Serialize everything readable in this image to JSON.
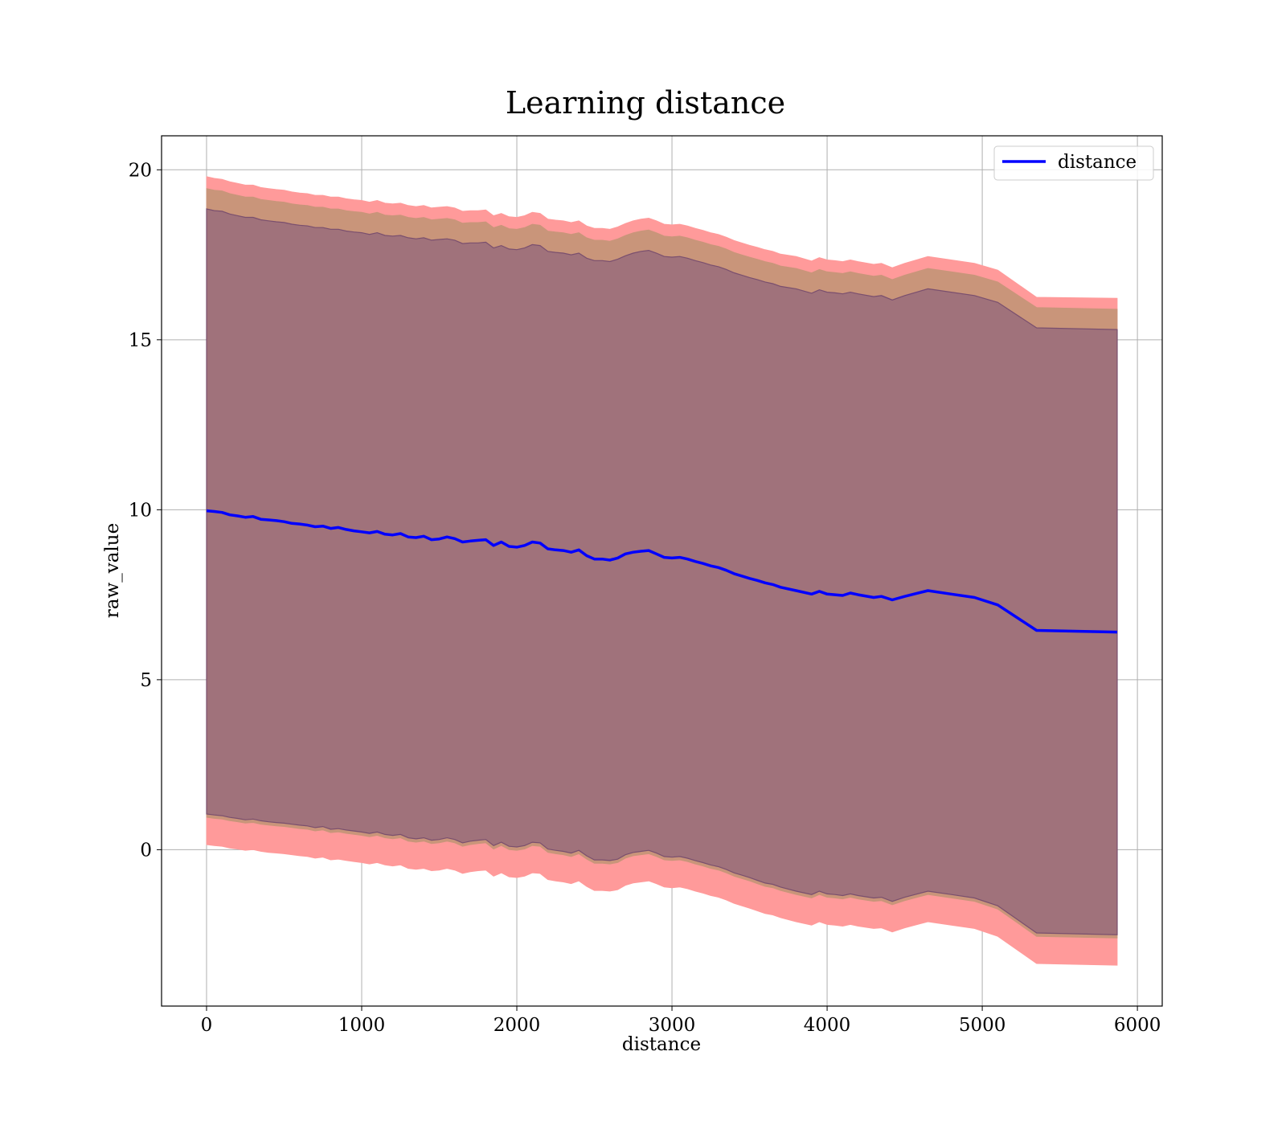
{
  "chart_data": {
    "type": "line",
    "title": "Learning distance",
    "xlabel": "distance",
    "ylabel": "raw_value",
    "xlim": [
      -290,
      6160
    ],
    "ylim": [
      -4.6,
      21.0
    ],
    "xticks": [
      0,
      1000,
      2000,
      3000,
      4000,
      5000,
      6000
    ],
    "yticks": [
      0,
      5,
      10,
      15,
      20
    ],
    "grid": true,
    "legend_position": "top-right",
    "colors": {
      "line": "#0000ff",
      "band_outer": "#ff9a9a",
      "band_middle": "#c9957a",
      "band_inner": "#a0727b",
      "band_inner_edge": "#7a4f6e"
    },
    "series": [
      {
        "name": "distance",
        "x": [
          0,
          50,
          100,
          150,
          200,
          250,
          300,
          350,
          400,
          450,
          500,
          550,
          600,
          650,
          700,
          750,
          800,
          850,
          900,
          950,
          1000,
          1050,
          1100,
          1150,
          1200,
          1250,
          1300,
          1350,
          1400,
          1450,
          1500,
          1550,
          1600,
          1650,
          1700,
          1750,
          1800,
          1850,
          1900,
          1950,
          2000,
          2050,
          2100,
          2150,
          2200,
          2250,
          2300,
          2350,
          2400,
          2450,
          2500,
          2550,
          2600,
          2650,
          2700,
          2750,
          2800,
          2850,
          2900,
          2950,
          3000,
          3050,
          3100,
          3150,
          3200,
          3250,
          3300,
          3350,
          3400,
          3450,
          3500,
          3550,
          3600,
          3650,
          3700,
          3800,
          3900,
          3950,
          4000,
          4050,
          4100,
          4150,
          4200,
          4300,
          4350,
          4420,
          4500,
          4650,
          4800,
          4950,
          5100,
          5350,
          5870
        ],
        "y": [
          9.97,
          9.95,
          9.92,
          9.85,
          9.82,
          9.78,
          9.8,
          9.72,
          9.7,
          9.68,
          9.65,
          9.6,
          9.58,
          9.55,
          9.5,
          9.52,
          9.45,
          9.48,
          9.42,
          9.38,
          9.35,
          9.32,
          9.36,
          9.28,
          9.26,
          9.3,
          9.2,
          9.18,
          9.22,
          9.12,
          9.14,
          9.2,
          9.15,
          9.05,
          9.08,
          9.1,
          9.12,
          8.95,
          9.05,
          8.92,
          8.9,
          8.95,
          9.05,
          9.02,
          8.85,
          8.82,
          8.8,
          8.75,
          8.82,
          8.65,
          8.55,
          8.55,
          8.52,
          8.58,
          8.7,
          8.75,
          8.78,
          8.8,
          8.7,
          8.6,
          8.58,
          8.6,
          8.55,
          8.48,
          8.42,
          8.35,
          8.3,
          8.22,
          8.12,
          8.05,
          7.98,
          7.92,
          7.85,
          7.8,
          7.72,
          7.62,
          7.52,
          7.6,
          7.52,
          7.5,
          7.48,
          7.55,
          7.5,
          7.42,
          7.45,
          7.35,
          7.45,
          7.62,
          7.52,
          7.42,
          7.2,
          6.45,
          6.4
        ]
      }
    ],
    "bands": [
      {
        "level": "outer",
        "upper": [
          19.8,
          19.75,
          19.72,
          19.65,
          19.6,
          19.55,
          19.55,
          19.48,
          19.45,
          19.42,
          19.4,
          19.35,
          19.32,
          19.3,
          19.25,
          19.25,
          19.2,
          19.2,
          19.15,
          19.12,
          19.1,
          19.05,
          19.1,
          19.02,
          19.0,
          19.02,
          18.95,
          18.92,
          18.95,
          18.88,
          18.9,
          18.92,
          18.88,
          18.78,
          18.8,
          18.8,
          18.82,
          18.65,
          18.72,
          18.62,
          18.6,
          18.65,
          18.75,
          18.72,
          18.55,
          18.52,
          18.5,
          18.45,
          18.5,
          18.35,
          18.28,
          18.28,
          18.25,
          18.32,
          18.42,
          18.5,
          18.55,
          18.58,
          18.5,
          18.4,
          18.38,
          18.4,
          18.35,
          18.28,
          18.22,
          18.15,
          18.1,
          18.02,
          17.92,
          17.85,
          17.78,
          17.72,
          17.65,
          17.6,
          17.52,
          17.45,
          17.32,
          17.42,
          17.35,
          17.33,
          17.3,
          17.35,
          17.3,
          17.22,
          17.25,
          17.12,
          17.25,
          17.45,
          17.35,
          17.25,
          17.05,
          16.25,
          16.22
        ],
        "lower": [
          0.15,
          0.12,
          0.1,
          0.05,
          0.02,
          -0.02,
          0.0,
          -0.05,
          -0.08,
          -0.1,
          -0.12,
          -0.15,
          -0.18,
          -0.2,
          -0.25,
          -0.22,
          -0.3,
          -0.28,
          -0.32,
          -0.35,
          -0.38,
          -0.42,
          -0.38,
          -0.45,
          -0.48,
          -0.45,
          -0.55,
          -0.58,
          -0.55,
          -0.62,
          -0.6,
          -0.55,
          -0.6,
          -0.7,
          -0.65,
          -0.62,
          -0.6,
          -0.78,
          -0.68,
          -0.8,
          -0.82,
          -0.78,
          -0.68,
          -0.7,
          -0.88,
          -0.92,
          -0.95,
          -1.0,
          -0.92,
          -1.08,
          -1.2,
          -1.2,
          -1.22,
          -1.18,
          -1.05,
          -0.98,
          -0.95,
          -0.92,
          -1.0,
          -1.1,
          -1.12,
          -1.1,
          -1.15,
          -1.22,
          -1.28,
          -1.35,
          -1.4,
          -1.48,
          -1.58,
          -1.65,
          -1.72,
          -1.8,
          -1.88,
          -1.92,
          -2.0,
          -2.12,
          -2.22,
          -2.12,
          -2.2,
          -2.22,
          -2.25,
          -2.2,
          -2.25,
          -2.32,
          -2.3,
          -2.42,
          -2.3,
          -2.12,
          -2.22,
          -2.32,
          -2.55,
          -3.35,
          -3.4
        ]
      },
      {
        "level": "middle",
        "upper": [
          19.45,
          19.4,
          19.38,
          19.3,
          19.25,
          19.2,
          19.2,
          19.13,
          19.1,
          19.07,
          19.05,
          19.0,
          18.97,
          18.95,
          18.9,
          18.9,
          18.85,
          18.85,
          18.8,
          18.77,
          18.75,
          18.7,
          18.75,
          18.67,
          18.65,
          18.67,
          18.6,
          18.57,
          18.6,
          18.53,
          18.55,
          18.57,
          18.53,
          18.43,
          18.45,
          18.45,
          18.47,
          18.3,
          18.37,
          18.27,
          18.25,
          18.3,
          18.4,
          18.37,
          18.2,
          18.17,
          18.15,
          18.1,
          18.15,
          18.0,
          17.93,
          17.93,
          17.9,
          17.97,
          18.07,
          18.15,
          18.2,
          18.23,
          18.15,
          18.05,
          18.03,
          18.05,
          18.0,
          17.93,
          17.87,
          17.8,
          17.75,
          17.67,
          17.57,
          17.5,
          17.43,
          17.37,
          17.3,
          17.25,
          17.17,
          17.1,
          16.97,
          17.07,
          17.0,
          16.98,
          16.95,
          17.0,
          16.95,
          16.87,
          16.9,
          16.77,
          16.9,
          17.1,
          17.0,
          16.9,
          16.7,
          15.95,
          15.9
        ],
        "lower": [
          0.95,
          0.92,
          0.9,
          0.85,
          0.82,
          0.78,
          0.8,
          0.75,
          0.72,
          0.7,
          0.68,
          0.65,
          0.62,
          0.6,
          0.55,
          0.58,
          0.5,
          0.52,
          0.48,
          0.45,
          0.42,
          0.38,
          0.42,
          0.35,
          0.32,
          0.35,
          0.25,
          0.22,
          0.25,
          0.18,
          0.2,
          0.25,
          0.2,
          0.1,
          0.15,
          0.18,
          0.2,
          0.02,
          0.12,
          0.0,
          -0.02,
          0.02,
          0.12,
          0.1,
          -0.08,
          -0.12,
          -0.15,
          -0.2,
          -0.12,
          -0.28,
          -0.4,
          -0.4,
          -0.42,
          -0.38,
          -0.25,
          -0.18,
          -0.15,
          -0.12,
          -0.2,
          -0.3,
          -0.32,
          -0.3,
          -0.35,
          -0.42,
          -0.48,
          -0.55,
          -0.6,
          -0.68,
          -0.78,
          -0.85,
          -0.92,
          -1.0,
          -1.08,
          -1.12,
          -1.2,
          -1.32,
          -1.42,
          -1.32,
          -1.4,
          -1.42,
          -1.45,
          -1.4,
          -1.45,
          -1.52,
          -1.5,
          -1.62,
          -1.5,
          -1.32,
          -1.42,
          -1.52,
          -1.75,
          -2.55,
          -2.6
        ]
      },
      {
        "level": "inner",
        "upper": [
          18.85,
          18.8,
          18.78,
          18.7,
          18.65,
          18.6,
          18.6,
          18.53,
          18.5,
          18.47,
          18.45,
          18.4,
          18.37,
          18.35,
          18.3,
          18.3,
          18.25,
          18.25,
          18.2,
          18.17,
          18.15,
          18.1,
          18.15,
          18.07,
          18.05,
          18.07,
          18.0,
          17.97,
          18.0,
          17.93,
          17.95,
          17.97,
          17.93,
          17.83,
          17.85,
          17.85,
          17.87,
          17.7,
          17.77,
          17.67,
          17.65,
          17.7,
          17.8,
          17.77,
          17.6,
          17.57,
          17.55,
          17.5,
          17.55,
          17.4,
          17.33,
          17.33,
          17.3,
          17.37,
          17.47,
          17.55,
          17.6,
          17.63,
          17.55,
          17.45,
          17.43,
          17.45,
          17.4,
          17.33,
          17.27,
          17.2,
          17.15,
          17.07,
          16.97,
          16.9,
          16.83,
          16.77,
          16.7,
          16.65,
          16.57,
          16.5,
          16.37,
          16.47,
          16.4,
          16.38,
          16.35,
          16.4,
          16.35,
          16.27,
          16.3,
          16.17,
          16.3,
          16.5,
          16.4,
          16.3,
          16.1,
          15.35,
          15.3
        ],
        "lower": [
          1.05,
          1.02,
          1.0,
          0.95,
          0.92,
          0.88,
          0.9,
          0.85,
          0.82,
          0.8,
          0.78,
          0.75,
          0.72,
          0.7,
          0.65,
          0.68,
          0.6,
          0.62,
          0.58,
          0.55,
          0.52,
          0.48,
          0.52,
          0.45,
          0.42,
          0.45,
          0.35,
          0.32,
          0.35,
          0.28,
          0.3,
          0.35,
          0.3,
          0.2,
          0.25,
          0.28,
          0.3,
          0.12,
          0.22,
          0.1,
          0.08,
          0.12,
          0.22,
          0.2,
          0.02,
          -0.02,
          -0.05,
          -0.1,
          -0.02,
          -0.18,
          -0.3,
          -0.3,
          -0.32,
          -0.28,
          -0.15,
          -0.08,
          -0.05,
          -0.02,
          -0.1,
          -0.2,
          -0.22,
          -0.2,
          -0.25,
          -0.32,
          -0.38,
          -0.45,
          -0.5,
          -0.58,
          -0.68,
          -0.75,
          -0.82,
          -0.9,
          -0.98,
          -1.02,
          -1.1,
          -1.22,
          -1.32,
          -1.22,
          -1.3,
          -1.32,
          -1.35,
          -1.3,
          -1.35,
          -1.42,
          -1.4,
          -1.52,
          -1.4,
          -1.22,
          -1.32,
          -1.42,
          -1.65,
          -2.45,
          -2.5
        ]
      }
    ]
  }
}
